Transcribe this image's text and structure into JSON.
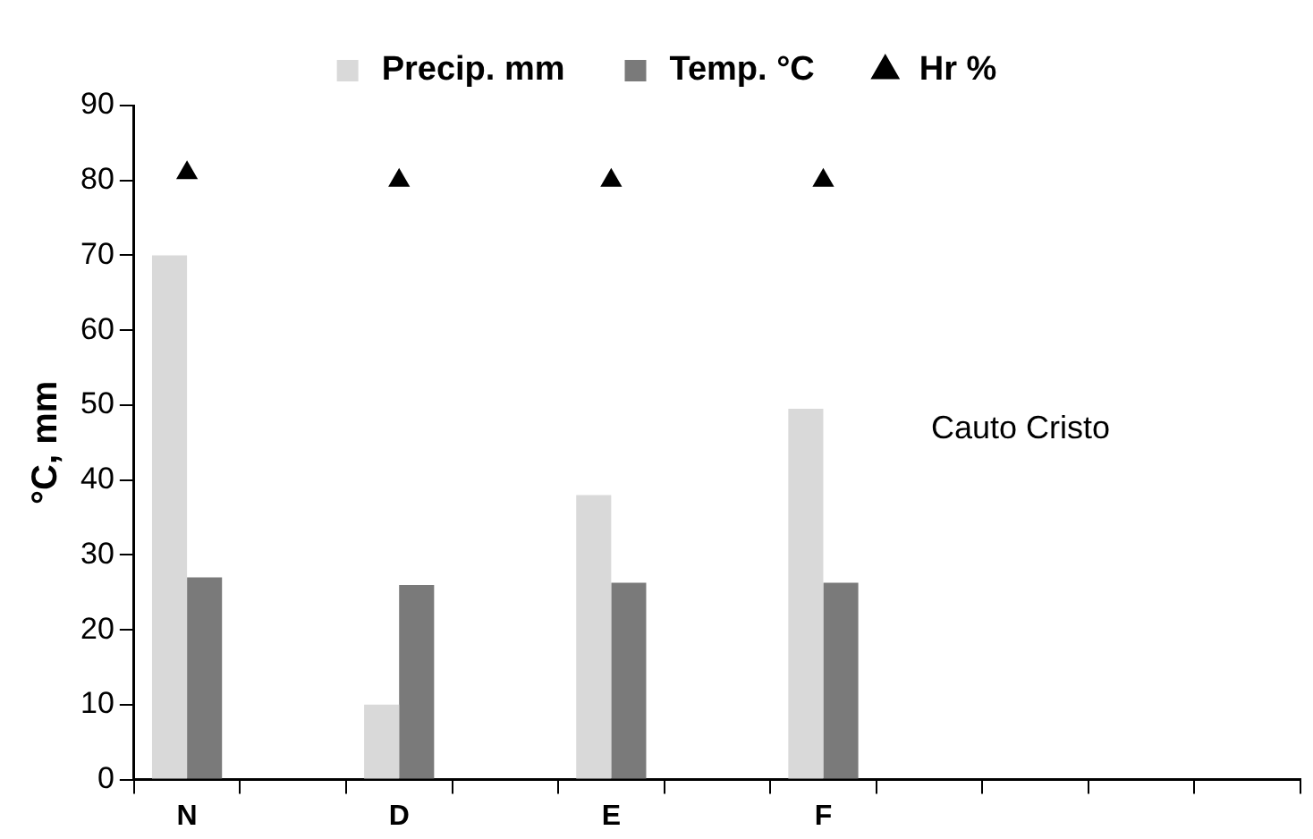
{
  "chart_data": {
    "type": "bar",
    "ylabel": "°C, mm",
    "categories": [
      "N",
      null,
      "D",
      null,
      "E",
      null,
      "F",
      null,
      null,
      null,
      null
    ],
    "series": [
      {
        "name": "Precip. mm",
        "color": "#d9d9d9",
        "values": [
          70,
          null,
          10,
          null,
          38,
          null,
          49.5,
          null,
          null,
          null,
          null
        ]
      },
      {
        "name": "Temp. °C",
        "color": "#7a7a7a",
        "values": [
          27,
          null,
          26,
          null,
          26.3,
          null,
          26.3,
          null,
          null,
          null,
          null
        ]
      },
      {
        "name": "Hr %",
        "type": "scatter",
        "color": "#000000",
        "marker": "triangle",
        "x": [
          "N",
          "D",
          "E",
          "F"
        ],
        "values": [
          81,
          80,
          80,
          80
        ]
      }
    ],
    "ylim": [
      0,
      90
    ],
    "yticks": [
      0,
      10,
      20,
      30,
      40,
      50,
      60,
      70,
      80,
      90
    ],
    "grid": false,
    "legend": "top",
    "annotations": [
      "Cauto Cristo"
    ]
  }
}
